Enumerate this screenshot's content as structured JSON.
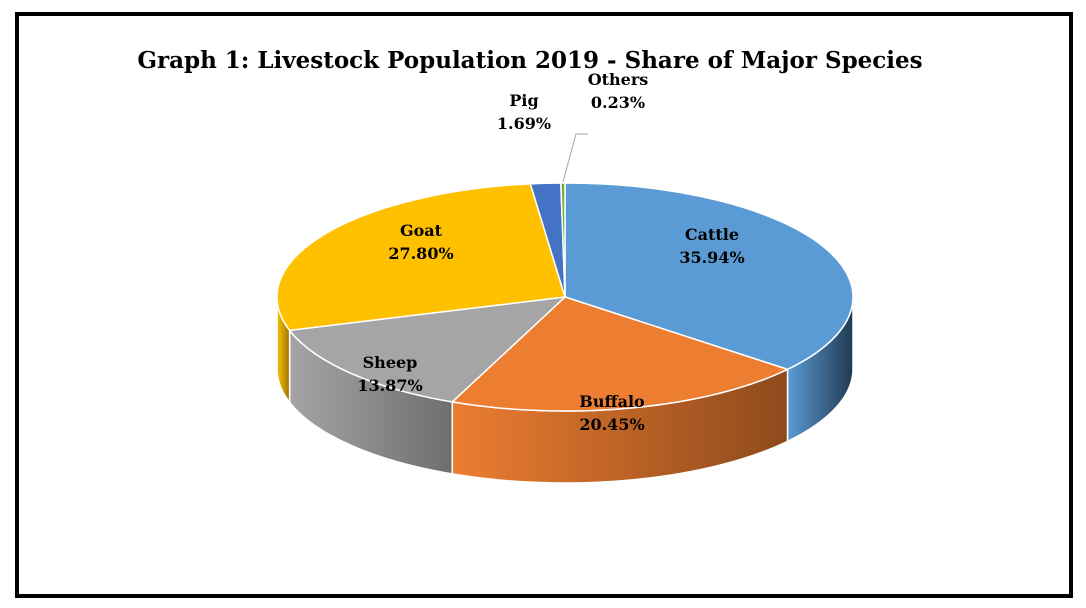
{
  "chart_data": {
    "type": "pie",
    "title": "Graph 1: Livestock Population 2019 - Share of Major Species",
    "slices": [
      {
        "name": "Cattle",
        "label": "35.94%",
        "value": 35.94,
        "color": "#5B9BD5",
        "side": "#203A52"
      },
      {
        "name": "Buffalo",
        "label": "20.45%",
        "value": 20.45,
        "color": "#ED7D31",
        "side": "#8E4A1C"
      },
      {
        "name": "Sheep",
        "label": "13.87%",
        "value": 13.87,
        "color": "#A5A5A5",
        "side": "#6E6E6E"
      },
      {
        "name": "Goat",
        "label": "27.80%",
        "value": 27.8,
        "color": "#FFC000",
        "side": "#9A7400"
      },
      {
        "name": "Pig",
        "label": "1.69%",
        "value": 1.69,
        "color": "#4472C4",
        "side": "#26457A"
      },
      {
        "name": "Others",
        "label": "0.23%",
        "value": 0.23,
        "color": "#70AD47",
        "side": "#436B2A"
      }
    ]
  }
}
